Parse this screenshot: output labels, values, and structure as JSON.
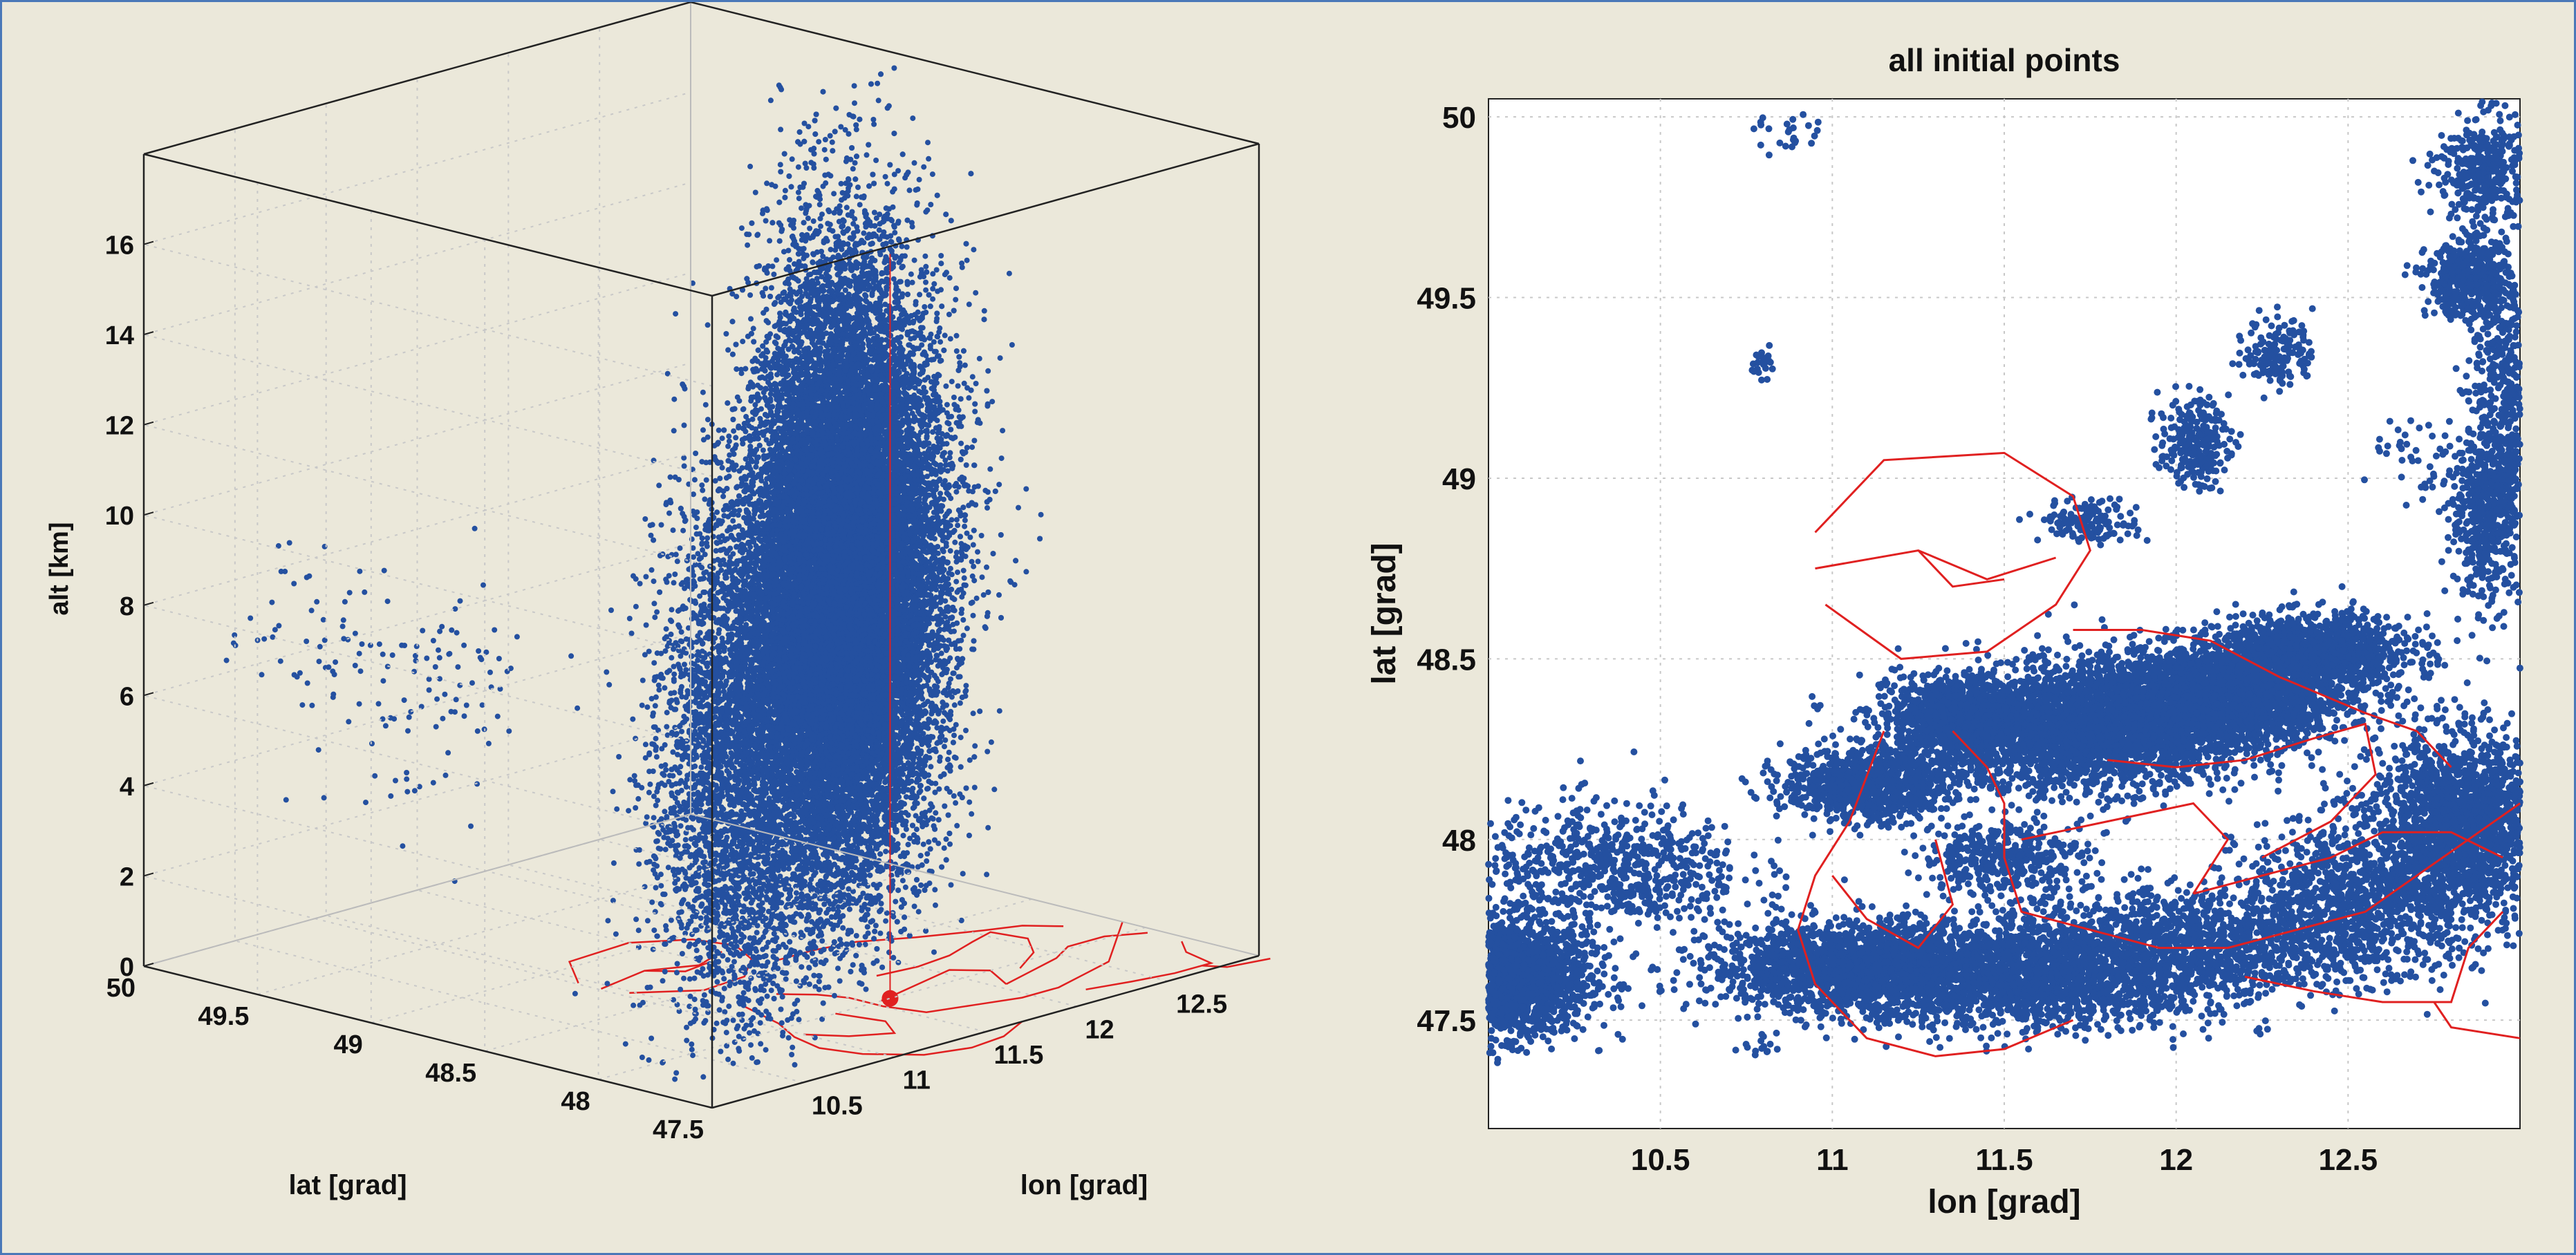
{
  "colors": {
    "background": "#ebe8da",
    "frame": "#4a78b8",
    "points": "#2450a0",
    "regions": "#e02020",
    "grid": "#c8c8c8"
  },
  "chart_data": [
    {
      "type": "scatter",
      "subtype": "3d",
      "title": "",
      "xlabel": "lon [grad]",
      "ylabel": "lat [grad]",
      "zlabel": "alt [km]",
      "xlim": [
        10.0,
        13.0
      ],
      "ylim": [
        47.5,
        50.0
      ],
      "zlim": [
        0,
        18
      ],
      "xticks": [
        "10.5",
        "11",
        "11.5",
        "12",
        "12.5"
      ],
      "yticks": [
        "47.5",
        "48",
        "48.5",
        "49",
        "49.5",
        "50"
      ],
      "zticks": [
        "0",
        "2",
        "4",
        "6",
        "8",
        "10",
        "12",
        "14",
        "16"
      ],
      "grid": true,
      "marker": {
        "lon": 11.6,
        "lat": 48.0,
        "alt": 0,
        "color": "#e02020"
      },
      "clusters": [
        {
          "lon": 11.35,
          "lat": 48.1,
          "alt": 8.0,
          "spread_alt": 3.0,
          "n": 9000
        },
        {
          "lon": 11.75,
          "lat": 48.3,
          "alt": 8.0,
          "spread_alt": 3.0,
          "n": 9000
        },
        {
          "lon": 12.2,
          "lat": 48.55,
          "alt": 8.2,
          "spread_alt": 3.0,
          "n": 6000
        },
        {
          "lon": 12.8,
          "lat": 49.2,
          "alt": 8.5,
          "spread_alt": 3.2,
          "n": 7000
        },
        {
          "lon": 10.4,
          "lat": 47.7,
          "alt": 7.0,
          "spread_alt": 3.0,
          "n": 4000
        },
        {
          "lon": 10.85,
          "lat": 49.9,
          "alt": 6.5,
          "spread_alt": 1.0,
          "n": 60
        },
        {
          "lon": 10.75,
          "lat": 49.3,
          "alt": 6.2,
          "spread_alt": 1.3,
          "n": 90
        }
      ]
    },
    {
      "type": "scatter",
      "title": "all initial points",
      "xlabel": "lon [grad]",
      "ylabel": "lat [grad]",
      "xlim": [
        10.0,
        13.0
      ],
      "ylim": [
        47.2,
        50.05
      ],
      "xticks": [
        "10.5",
        "11",
        "11.5",
        "12",
        "12.5"
      ],
      "yticks": [
        "47.5",
        "48",
        "48.5",
        "49",
        "49.5",
        "50"
      ],
      "grid": true,
      "clusters": [
        {
          "lon": 10.05,
          "lat": 47.62,
          "sx": 0.12,
          "sy": 0.08,
          "n": 2200
        },
        {
          "lon": 10.35,
          "lat": 47.92,
          "sx": 0.2,
          "sy": 0.09,
          "n": 700
        },
        {
          "lon": 11.05,
          "lat": 47.65,
          "sx": 0.2,
          "sy": 0.06,
          "n": 1600
        },
        {
          "lon": 11.55,
          "lat": 47.62,
          "sx": 0.3,
          "sy": 0.07,
          "n": 2200
        },
        {
          "lon": 12.05,
          "lat": 47.72,
          "sx": 0.3,
          "sy": 0.08,
          "n": 1300
        },
        {
          "lon": 12.55,
          "lat": 47.85,
          "sx": 0.18,
          "sy": 0.1,
          "n": 1000
        },
        {
          "lon": 12.85,
          "lat": 48.05,
          "sx": 0.14,
          "sy": 0.12,
          "n": 2000
        },
        {
          "lon": 11.1,
          "lat": 48.15,
          "sx": 0.12,
          "sy": 0.05,
          "n": 900
        },
        {
          "lon": 11.35,
          "lat": 48.35,
          "sx": 0.08,
          "sy": 0.05,
          "n": 800
        },
        {
          "lon": 11.7,
          "lat": 48.3,
          "sx": 0.25,
          "sy": 0.08,
          "n": 3000
        },
        {
          "lon": 12.1,
          "lat": 48.4,
          "sx": 0.2,
          "sy": 0.07,
          "n": 2500
        },
        {
          "lon": 12.4,
          "lat": 48.52,
          "sx": 0.14,
          "sy": 0.05,
          "n": 1200
        },
        {
          "lon": 11.5,
          "lat": 47.95,
          "sx": 0.12,
          "sy": 0.05,
          "n": 400
        },
        {
          "lon": 12.9,
          "lat": 48.9,
          "sx": 0.05,
          "sy": 0.12,
          "n": 500
        },
        {
          "lon": 12.85,
          "lat": 49.55,
          "sx": 0.06,
          "sy": 0.05,
          "n": 500
        },
        {
          "lon": 12.95,
          "lat": 49.2,
          "sx": 0.05,
          "sy": 0.2,
          "n": 500
        },
        {
          "lon": 12.9,
          "lat": 49.85,
          "sx": 0.07,
          "sy": 0.08,
          "n": 400
        },
        {
          "lon": 12.05,
          "lat": 49.1,
          "sx": 0.05,
          "sy": 0.06,
          "n": 250
        },
        {
          "lon": 12.3,
          "lat": 49.35,
          "sx": 0.05,
          "sy": 0.05,
          "n": 150
        },
        {
          "lon": 11.75,
          "lat": 48.88,
          "sx": 0.07,
          "sy": 0.03,
          "n": 150
        },
        {
          "lon": 10.8,
          "lat": 49.32,
          "sx": 0.02,
          "sy": 0.02,
          "n": 25
        },
        {
          "lon": 10.88,
          "lat": 49.95,
          "sx": 0.05,
          "sy": 0.03,
          "n": 25
        },
        {
          "lon": 12.7,
          "lat": 49.05,
          "sx": 0.07,
          "sy": 0.06,
          "n": 40
        },
        {
          "lon": 10.78,
          "lat": 47.42,
          "sx": 0.04,
          "sy": 0.02,
          "n": 15
        }
      ],
      "regions": [
        [
          [
            10.95,
            48.85
          ],
          [
            11.15,
            49.05
          ],
          [
            11.5,
            49.07
          ],
          [
            11.7,
            48.95
          ],
          [
            11.75,
            48.8
          ],
          [
            11.65,
            48.65
          ],
          [
            11.45,
            48.52
          ],
          [
            11.2,
            48.5
          ],
          [
            10.98,
            48.65
          ]
        ],
        [
          [
            10.95,
            48.75
          ],
          [
            11.25,
            48.8
          ],
          [
            11.45,
            48.72
          ],
          [
            11.65,
            48.78
          ]
        ],
        [
          [
            11.25,
            48.8
          ],
          [
            11.35,
            48.7
          ],
          [
            11.5,
            48.72
          ]
        ],
        [
          [
            11.7,
            48.58
          ],
          [
            11.9,
            48.58
          ],
          [
            12.1,
            48.55
          ],
          [
            12.3,
            48.45
          ],
          [
            12.55,
            48.35
          ],
          [
            12.7,
            48.3
          ],
          [
            12.8,
            48.2
          ]
        ],
        [
          [
            11.35,
            48.3
          ],
          [
            11.45,
            48.2
          ],
          [
            11.5,
            48.1
          ],
          [
            11.5,
            47.95
          ],
          [
            11.55,
            47.8
          ],
          [
            11.75,
            47.75
          ],
          [
            11.95,
            47.7
          ],
          [
            12.15,
            47.7
          ],
          [
            12.35,
            47.75
          ],
          [
            12.55,
            47.8
          ],
          [
            12.7,
            47.9
          ],
          [
            12.85,
            48.0
          ],
          [
            13.0,
            48.1
          ]
        ],
        [
          [
            11.15,
            48.3
          ],
          [
            11.05,
            48.05
          ],
          [
            10.95,
            47.9
          ],
          [
            10.9,
            47.75
          ],
          [
            10.95,
            47.6
          ],
          [
            11.1,
            47.45
          ],
          [
            11.3,
            47.4
          ],
          [
            11.5,
            47.42
          ],
          [
            11.7,
            47.5
          ]
        ],
        [
          [
            11.55,
            48.0
          ],
          [
            11.8,
            48.05
          ],
          [
            12.05,
            48.1
          ],
          [
            12.15,
            48.0
          ],
          [
            12.05,
            47.85
          ]
        ],
        [
          [
            11.8,
            48.22
          ],
          [
            12.0,
            48.2
          ],
          [
            12.2,
            48.22
          ],
          [
            12.4,
            48.28
          ],
          [
            12.55,
            48.32
          ],
          [
            12.58,
            48.18
          ],
          [
            12.45,
            48.05
          ],
          [
            12.25,
            47.95
          ]
        ],
        [
          [
            11.3,
            48.0
          ],
          [
            11.35,
            47.82
          ],
          [
            11.25,
            47.7
          ],
          [
            11.1,
            47.78
          ],
          [
            11.0,
            47.9
          ]
        ],
        [
          [
            12.05,
            47.85
          ],
          [
            12.25,
            47.9
          ],
          [
            12.45,
            47.95
          ],
          [
            12.6,
            48.02
          ],
          [
            12.8,
            48.02
          ],
          [
            12.95,
            47.95
          ]
        ],
        [
          [
            12.2,
            47.62
          ],
          [
            12.4,
            47.58
          ],
          [
            12.6,
            47.55
          ],
          [
            12.8,
            47.55
          ],
          [
            12.85,
            47.7
          ],
          [
            12.95,
            47.8
          ]
        ],
        [
          [
            12.75,
            47.55
          ],
          [
            12.8,
            47.48
          ],
          [
            13.0,
            47.45
          ]
        ]
      ]
    }
  ]
}
